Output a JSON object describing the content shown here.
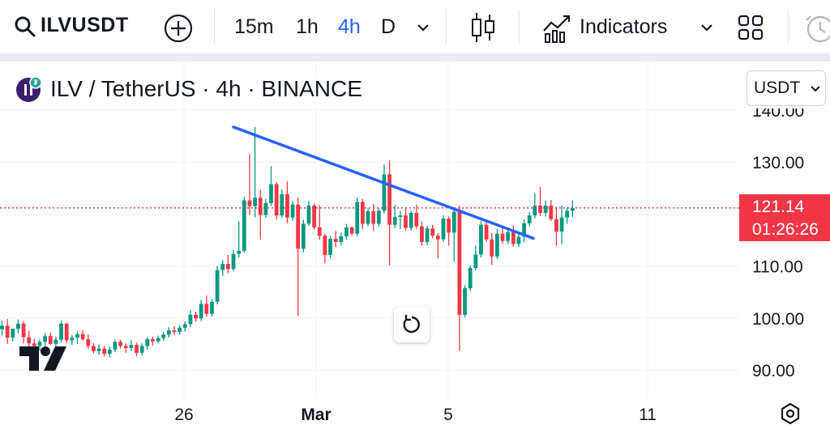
{
  "toolbar": {
    "symbol": "ILVUSDT",
    "intervals": [
      "15m",
      "1h",
      "4h",
      "D"
    ],
    "active_interval": "4h",
    "indicators_label": "Indicators"
  },
  "legend": {
    "title": "ILV / TetherUS · 4h · BINANCE"
  },
  "currency_label": "USDT",
  "last_price": {
    "price": "121.14",
    "countdown": "01:26:26"
  },
  "watermark_logo": "TV",
  "colors": {
    "up": "#089981",
    "down": "#f23645",
    "trendline": "#2962ff",
    "active_interval": "#2962ff"
  },
  "chart_data": {
    "type": "candlestick",
    "y_ticks": [
      "140.00",
      "130.00",
      "120.00",
      "110.00",
      "100.00",
      "90.00"
    ],
    "y_tick_values": [
      140,
      130,
      120,
      110,
      100,
      90
    ],
    "x_ticks": [
      "26",
      "Mar",
      "5",
      "11"
    ],
    "ylim": [
      84,
      150
    ],
    "grid": true,
    "last_price": 121.14,
    "trendline": {
      "from": {
        "candle": 0,
        "price": 136.7
      },
      "to": {
        "candle": 1,
        "price": 115.3
      }
    },
    "candles": [
      [
        97.8,
        99.5,
        96.6,
        98.5
      ],
      [
        98.5,
        99.8,
        95.0,
        96.2
      ],
      [
        96.2,
        98.0,
        95.5,
        97.9
      ],
      [
        97.9,
        99.7,
        97.0,
        98.9
      ],
      [
        98.9,
        99.4,
        95.1,
        96.3
      ],
      [
        96.3,
        97.5,
        94.4,
        95.1
      ],
      [
        95.1,
        96.0,
        94.0,
        94.6
      ],
      [
        94.6,
        95.8,
        93.7,
        95.4
      ],
      [
        95.4,
        97.1,
        94.6,
        96.5
      ],
      [
        96.5,
        97.2,
        94.8,
        95.0
      ],
      [
        95.0,
        96.4,
        94.3,
        95.8
      ],
      [
        95.8,
        99.5,
        95.3,
        98.9
      ],
      [
        98.9,
        99.1,
        95.1,
        95.7
      ],
      [
        95.7,
        96.7,
        94.8,
        96.2
      ],
      [
        96.2,
        97.4,
        95.0,
        96.9
      ],
      [
        96.9,
        97.6,
        95.6,
        95.9
      ],
      [
        95.9,
        96.8,
        94.1,
        94.6
      ],
      [
        94.6,
        95.2,
        93.2,
        93.6
      ],
      [
        93.6,
        94.9,
        92.9,
        94.1
      ],
      [
        94.1,
        94.6,
        92.6,
        93.1
      ],
      [
        93.1,
        94.5,
        92.4,
        93.9
      ],
      [
        93.9,
        95.9,
        93.4,
        95.4
      ],
      [
        95.4,
        95.8,
        94.1,
        94.6
      ],
      [
        94.6,
        95.1,
        93.3,
        94.2
      ],
      [
        94.2,
        95.7,
        93.6,
        94.8
      ],
      [
        94.8,
        95.2,
        92.6,
        93.3
      ],
      [
        93.3,
        95.1,
        92.8,
        94.6
      ],
      [
        94.6,
        96.3,
        93.9,
        95.9
      ],
      [
        95.9,
        96.4,
        94.7,
        95.5
      ],
      [
        95.5,
        96.6,
        95.1,
        96.1
      ],
      [
        96.1,
        97.3,
        95.6,
        96.8
      ],
      [
        96.8,
        98.2,
        96.2,
        97.6
      ],
      [
        97.6,
        98.4,
        96.7,
        97.3
      ],
      [
        97.3,
        98.6,
        96.8,
        98.1
      ],
      [
        98.1,
        99.3,
        97.4,
        98.8
      ],
      [
        98.8,
        101.5,
        98.2,
        100.6
      ],
      [
        100.6,
        101.2,
        99.3,
        99.9
      ],
      [
        99.9,
        103.5,
        99.4,
        102.7
      ],
      [
        102.7,
        104.3,
        100.2,
        100.8
      ],
      [
        100.8,
        103.6,
        100.3,
        103.1
      ],
      [
        103.1,
        110.0,
        102.6,
        109.2
      ],
      [
        109.2,
        111.1,
        108.1,
        110.4
      ],
      [
        110.4,
        112.1,
        108.6,
        109.4
      ],
      [
        109.4,
        113.1,
        109.0,
        112.3
      ],
      [
        112.3,
        118.6,
        111.6,
        112.9
      ],
      [
        112.9,
        123.3,
        112.5,
        122.6
      ],
      [
        122.6,
        131.5,
        119.8,
        121.5
      ],
      [
        121.5,
        136.7,
        119.3,
        123.1
      ],
      [
        123.1,
        124.6,
        115.1,
        119.8
      ],
      [
        119.8,
        122.9,
        119.3,
        122.1
      ],
      [
        122.1,
        129.2,
        121.5,
        125.7
      ],
      [
        125.7,
        126.1,
        118.9,
        119.7
      ],
      [
        119.7,
        124.7,
        119.2,
        123.8
      ],
      [
        123.8,
        126.3,
        118.2,
        119.3
      ],
      [
        119.3,
        122.5,
        118.7,
        121.8
      ],
      [
        121.8,
        123.2,
        100.4,
        113.3
      ],
      [
        113.3,
        118.9,
        112.6,
        118.1
      ],
      [
        118.1,
        122.5,
        117.7,
        121.6
      ],
      [
        121.6,
        122.0,
        117.0,
        117.4
      ],
      [
        117.4,
        121.7,
        115.0,
        115.8
      ],
      [
        115.8,
        116.2,
        110.5,
        112.1
      ],
      [
        112.1,
        115.8,
        111.5,
        115.2
      ],
      [
        115.2,
        116.7,
        113.6,
        114.6
      ],
      [
        114.6,
        116.4,
        113.9,
        115.7
      ],
      [
        115.7,
        118.1,
        115.1,
        117.4
      ],
      [
        117.4,
        117.6,
        115.8,
        116.2
      ],
      [
        116.2,
        123.1,
        115.7,
        122.3
      ],
      [
        122.3,
        122.9,
        117.1,
        118.1
      ],
      [
        118.1,
        121.1,
        117.6,
        120.5
      ],
      [
        120.5,
        121.9,
        116.8,
        118.1
      ],
      [
        118.1,
        121.1,
        117.6,
        120.6
      ],
      [
        120.6,
        129.5,
        120.1,
        127.6
      ],
      [
        127.6,
        130.3,
        110.1,
        117.9
      ],
      [
        117.9,
        121.7,
        117.3,
        119.4
      ],
      [
        119.4,
        120.5,
        117.1,
        119.7
      ],
      [
        119.7,
        121.3,
        116.8,
        117.3
      ],
      [
        117.3,
        120.6,
        116.8,
        120.2
      ],
      [
        120.2,
        121.8,
        117.1,
        117.6
      ],
      [
        117.6,
        118.6,
        113.9,
        114.6
      ],
      [
        114.6,
        117.7,
        114.0,
        117.2
      ],
      [
        117.2,
        117.9,
        115.3,
        115.8
      ],
      [
        115.8,
        116.3,
        111.4,
        115.1
      ],
      [
        115.1,
        119.7,
        114.6,
        119.1
      ],
      [
        119.1,
        119.5,
        113.9,
        116.4
      ],
      [
        116.4,
        121.1,
        110.8,
        120.4
      ],
      [
        120.4,
        121.6,
        93.7,
        100.6
      ],
      [
        100.6,
        106.3,
        100.1,
        105.7
      ],
      [
        105.7,
        110.1,
        105.2,
        109.6
      ],
      [
        109.6,
        113.9,
        109.1,
        112.2
      ],
      [
        112.2,
        118.6,
        111.6,
        117.9
      ],
      [
        117.9,
        118.9,
        114.6,
        115.1
      ],
      [
        115.1,
        116.3,
        110.2,
        111.8
      ],
      [
        111.8,
        117.1,
        111.3,
        116.2
      ],
      [
        116.2,
        117.6,
        114.2,
        114.8
      ],
      [
        114.8,
        117.2,
        114.2,
        116.5
      ],
      [
        116.5,
        117.8,
        113.7,
        114.2
      ],
      [
        114.2,
        116.3,
        113.6,
        115.6
      ],
      [
        115.6,
        118.9,
        114.5,
        118.2
      ],
      [
        118.2,
        120.3,
        117.6,
        119.7
      ],
      [
        119.7,
        124.0,
        119.1,
        121.6
      ],
      [
        121.6,
        125.2,
        119.6,
        120.2
      ],
      [
        120.2,
        122.6,
        119.5,
        121.6
      ],
      [
        121.6,
        122.7,
        118.6,
        119.0
      ],
      [
        119.0,
        121.3,
        113.9,
        116.6
      ],
      [
        116.6,
        121.6,
        114.2,
        119.3
      ],
      [
        119.3,
        121.2,
        118.1,
        120.6
      ],
      [
        120.6,
        122.6,
        119.4,
        121.14
      ]
    ]
  }
}
